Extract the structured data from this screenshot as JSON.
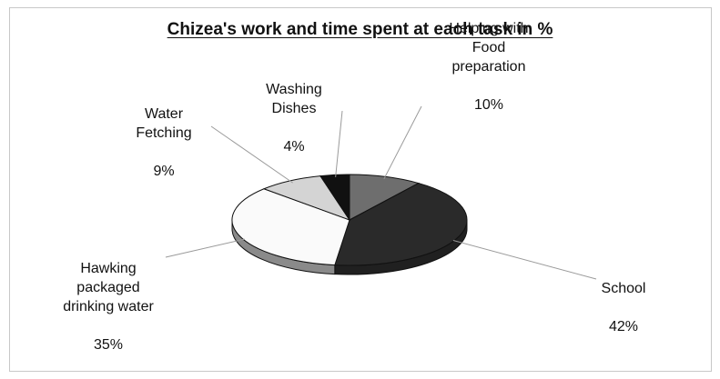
{
  "chart_data": {
    "type": "pie",
    "title": "Chizea's work and time spent at each task in %",
    "slices": [
      {
        "label": "Helping with\nFood\npreparation",
        "pct_label": "10%",
        "value": 10,
        "color": "#6e6e6e"
      },
      {
        "label": "School",
        "pct_label": "42%",
        "value": 42,
        "color": "#2a2a2a"
      },
      {
        "label": "Hawking\npackaged\ndrinking water",
        "pct_label": "35%",
        "value": 35,
        "color": "#fafafa"
      },
      {
        "label": "Water\nFetching",
        "pct_label": "9%",
        "value": 9,
        "color": "#d4d4d4"
      },
      {
        "label": "Washing\nDishes",
        "pct_label": "4%",
        "value": 4,
        "color": "#111111"
      }
    ],
    "style": "3d",
    "legend": "none"
  }
}
